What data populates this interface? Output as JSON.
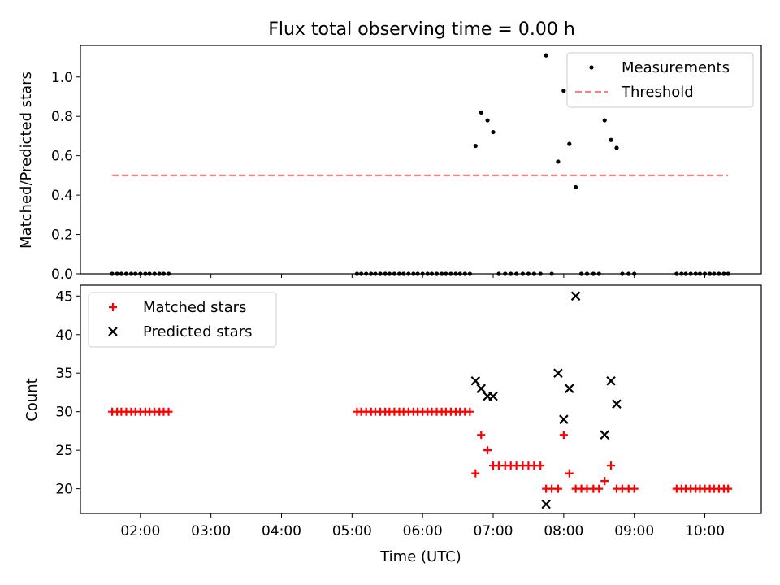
{
  "figure": {
    "title": "Flux total observing time = 0.00 h"
  },
  "chart_data": [
    {
      "type": "scatter",
      "title": "",
      "xlabel": "",
      "ylabel": "Matched/Predicted stars",
      "xlim": [
        1.15,
        10.8
      ],
      "ylim": [
        0,
        1.16
      ],
      "yticks": [
        0.0,
        0.2,
        0.4,
        0.6,
        0.8,
        1.0
      ],
      "ytick_labels": [
        "0.0",
        "0.2",
        "0.4",
        "0.6",
        "0.8",
        "1.0"
      ],
      "xticks": [
        2,
        3,
        4,
        5,
        6,
        7,
        8,
        9,
        10
      ],
      "legend_position": "upper right",
      "series": [
        {
          "name": "Measurements",
          "marker": "dot",
          "color": "#000000",
          "x": [
            1.6,
            1.67,
            1.73,
            1.8,
            1.87,
            1.93,
            2.0,
            2.07,
            2.13,
            2.2,
            2.27,
            2.33,
            2.4,
            5.07,
            5.13,
            5.2,
            5.27,
            5.33,
            5.4,
            5.47,
            5.53,
            5.6,
            5.67,
            5.73,
            5.8,
            5.87,
            5.93,
            6.0,
            6.07,
            6.13,
            6.2,
            6.27,
            6.33,
            6.4,
            6.47,
            6.53,
            6.6,
            6.67,
            6.75,
            6.83,
            6.92,
            7.0,
            7.08,
            7.17,
            7.25,
            7.33,
            7.42,
            7.5,
            7.58,
            7.67,
            7.75,
            7.83,
            7.92,
            8.0,
            8.08,
            8.17,
            8.25,
            8.33,
            8.42,
            8.5,
            8.58,
            8.67,
            8.75,
            8.83,
            8.92,
            9.0,
            9.6,
            9.67,
            9.73,
            9.8,
            9.87,
            9.93,
            10.0,
            10.07,
            10.13,
            10.2,
            10.27,
            10.33
          ],
          "y": [
            0,
            0,
            0,
            0,
            0,
            0,
            0,
            0,
            0,
            0,
            0,
            0,
            0,
            0,
            0,
            0,
            0,
            0,
            0,
            0,
            0,
            0,
            0,
            0,
            0,
            0,
            0,
            0,
            0,
            0,
            0,
            0,
            0,
            0,
            0,
            0,
            0,
            0,
            0.65,
            0.82,
            0.78,
            0.72,
            0,
            0,
            0,
            0,
            0,
            0,
            0,
            0,
            1.11,
            0,
            0.57,
            0.93,
            0.66,
            0.44,
            0,
            0,
            0,
            0,
            0.78,
            0.68,
            0.64,
            0,
            0,
            0,
            0,
            0,
            0,
            0,
            0,
            0,
            0,
            0,
            0,
            0,
            0,
            0
          ]
        },
        {
          "name": "Threshold",
          "marker": "dashed-line",
          "color": "#ff7f7f",
          "x": [
            1.6,
            10.33
          ],
          "y": [
            0.5,
            0.5
          ]
        }
      ]
    },
    {
      "type": "scatter",
      "title": "",
      "xlabel": "Time (UTC)",
      "ylabel": "Count",
      "xlim": [
        1.15,
        10.8
      ],
      "ylim": [
        16.8,
        46.4
      ],
      "yticks": [
        20,
        25,
        30,
        35,
        40,
        45
      ],
      "ytick_labels": [
        "20",
        "25",
        "30",
        "35",
        "40",
        "45"
      ],
      "xticks": [
        2,
        3,
        4,
        5,
        6,
        7,
        8,
        9,
        10
      ],
      "xtick_labels": [
        "02:00",
        "03:00",
        "04:00",
        "05:00",
        "06:00",
        "07:00",
        "08:00",
        "09:00",
        "10:00"
      ],
      "legend_position": "upper left",
      "series": [
        {
          "name": "Matched stars",
          "marker": "plus",
          "color": "#ff0000",
          "x": [
            1.6,
            1.67,
            1.73,
            1.8,
            1.87,
            1.93,
            2.0,
            2.07,
            2.13,
            2.2,
            2.27,
            2.33,
            2.4,
            5.07,
            5.13,
            5.2,
            5.27,
            5.33,
            5.4,
            5.47,
            5.53,
            5.6,
            5.67,
            5.73,
            5.8,
            5.87,
            5.93,
            6.0,
            6.07,
            6.13,
            6.2,
            6.27,
            6.33,
            6.4,
            6.47,
            6.53,
            6.6,
            6.67,
            6.75,
            6.83,
            6.92,
            7.0,
            7.08,
            7.17,
            7.25,
            7.33,
            7.42,
            7.5,
            7.58,
            7.67,
            7.75,
            7.83,
            7.92,
            8.0,
            8.08,
            8.17,
            8.25,
            8.33,
            8.42,
            8.5,
            8.58,
            8.67,
            8.75,
            8.83,
            8.92,
            9.0,
            9.6,
            9.67,
            9.73,
            9.8,
            9.87,
            9.93,
            10.0,
            10.07,
            10.13,
            10.2,
            10.27,
            10.33
          ],
          "y": [
            30,
            30,
            30,
            30,
            30,
            30,
            30,
            30,
            30,
            30,
            30,
            30,
            30,
            30,
            30,
            30,
            30,
            30,
            30,
            30,
            30,
            30,
            30,
            30,
            30,
            30,
            30,
            30,
            30,
            30,
            30,
            30,
            30,
            30,
            30,
            30,
            30,
            30,
            22,
            27,
            25,
            23,
            23,
            23,
            23,
            23,
            23,
            23,
            23,
            23,
            20,
            20,
            20,
            27,
            22,
            20,
            20,
            20,
            20,
            20,
            21,
            23,
            20,
            20,
            20,
            20,
            20,
            20,
            20,
            20,
            20,
            20,
            20,
            20,
            20,
            20,
            20,
            20
          ]
        },
        {
          "name": "Predicted stars",
          "marker": "x",
          "color": "#000000",
          "x": [
            6.75,
            6.83,
            6.92,
            7.0,
            7.75,
            7.92,
            8.0,
            8.08,
            8.17,
            8.58,
            8.67,
            8.75
          ],
          "y": [
            34,
            33,
            32,
            32,
            18,
            35,
            29,
            33,
            45,
            27,
            34,
            31
          ]
        }
      ]
    }
  ]
}
